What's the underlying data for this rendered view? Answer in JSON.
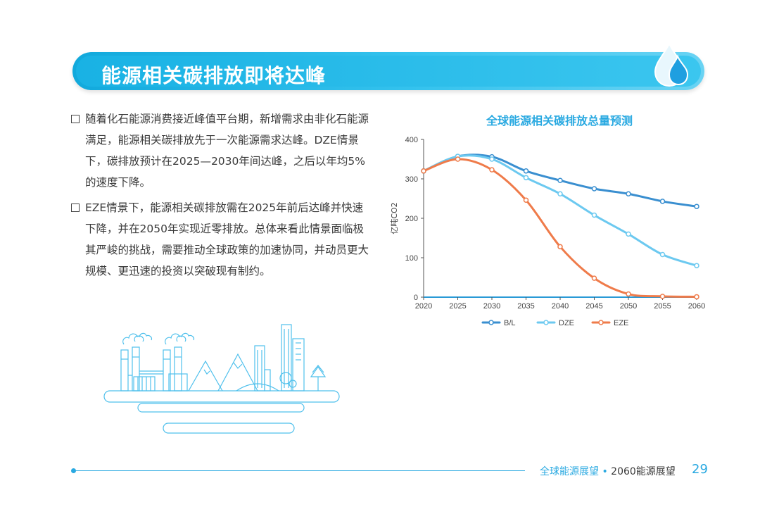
{
  "header": {
    "title": "能源相关碳排放即将达峰"
  },
  "bullets": [
    "随着化石能源消费接近峰值平台期，新增需求由非化石能源满足，能源相关碳排放先于一次能源需求达峰。DZE情景下，碳排放预计在2025—2030年间达峰，之后以年均5%的速度下降。",
    "EZE情景下，能源相关碳排放需在2025年前后达峰并快速下降，并在2050年实现近零排放。总体来看此情景面临极其严峻的挑战，需要推动全球政策的加速协同，并动员更大规模、更迅速的投资以突破现有制约。"
  ],
  "footer": {
    "publication": "全球能源展望",
    "separator": "•",
    "subtitle": "2060能源展望",
    "page": "29"
  },
  "colors": {
    "accent": "#29a9e1",
    "bl": "#3a8fd0",
    "dze": "#6cc9f0",
    "eze": "#ef7b4a"
  },
  "chart_data": {
    "type": "line",
    "title": "全球能源相关碳排放总量预测",
    "ylabel": "亿吨CO2",
    "xlabel": "",
    "x": [
      2020,
      2025,
      2030,
      2035,
      2040,
      2045,
      2050,
      2055,
      2060
    ],
    "ylim": [
      0,
      400
    ],
    "yticks": [
      0,
      100,
      200,
      300,
      400
    ],
    "legend": "bottom",
    "series": [
      {
        "name": "B/L",
        "color": "#3a8fd0",
        "values": [
          320,
          357,
          356,
          320,
          296,
          275,
          262,
          243,
          230
        ]
      },
      {
        "name": "DZE",
        "color": "#6cc9f0",
        "values": [
          320,
          357,
          350,
          303,
          262,
          208,
          160,
          108,
          80
        ]
      },
      {
        "name": "EZE",
        "color": "#ef7b4a",
        "values": [
          320,
          350,
          323,
          246,
          128,
          48,
          8,
          2,
          1
        ]
      }
    ]
  }
}
